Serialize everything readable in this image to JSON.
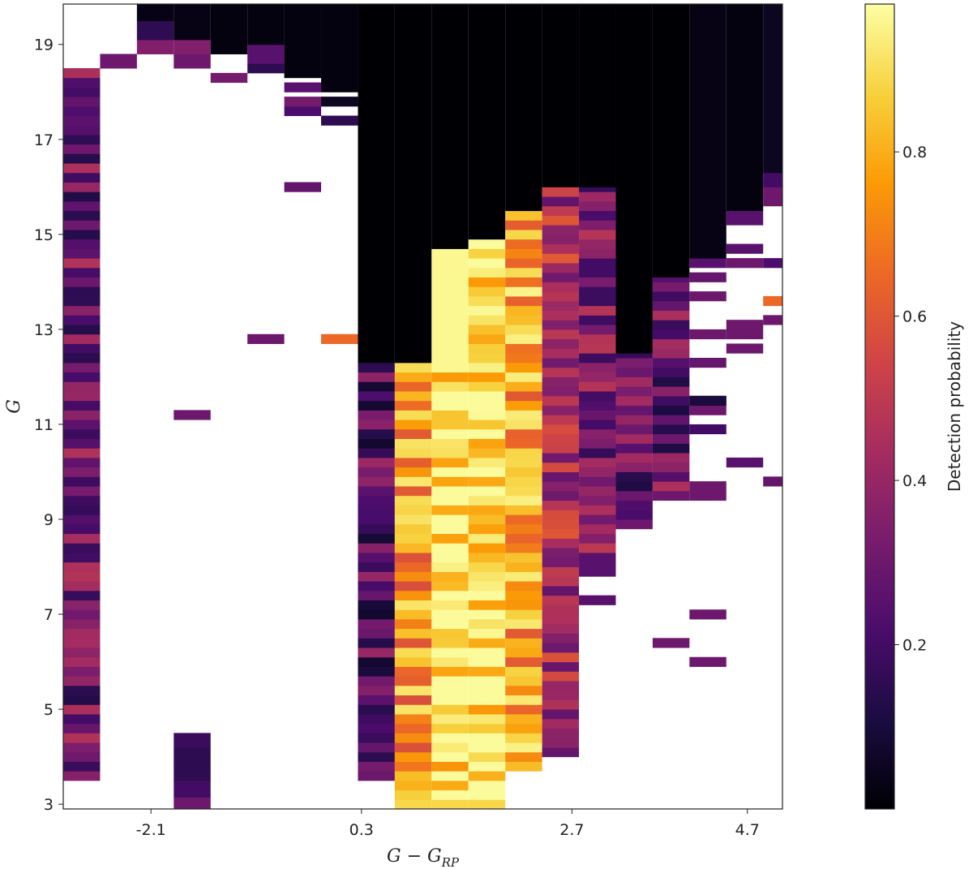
{
  "chart_data": {
    "type": "heatmap",
    "xlabel": "G − G",
    "xlabel_sub": "RP",
    "ylabel": "G",
    "colorbar_label": "Detection probability",
    "colormap": "inferno",
    "xlim": [
      -3.1,
      5.1
    ],
    "ylim": [
      2.9,
      19.85
    ],
    "x_ticks": [
      -2.1,
      0.3,
      2.7,
      4.7
    ],
    "x_tick_labels": [
      "-2.1",
      "0.3",
      "2.7",
      "4.7"
    ],
    "y_ticks": [
      3,
      5,
      7,
      9,
      11,
      13,
      15,
      17,
      19
    ],
    "y_tick_labels": [
      "3",
      "5",
      "7",
      "9",
      "11",
      "13",
      "15",
      "17",
      "19"
    ],
    "colorbar_range": [
      0.0,
      0.98
    ],
    "colorbar_ticks": [
      0.2,
      0.4,
      0.6,
      0.8
    ],
    "colorbar_tick_labels": [
      "0.2",
      "0.4",
      "0.6",
      "0.8"
    ],
    "x_bin_edges": [
      -3.1,
      -2.68,
      -2.26,
      -1.84,
      -1.42,
      -1.0,
      -0.58,
      -0.16,
      0.26,
      0.68,
      1.1,
      1.52,
      1.94,
      2.36,
      2.78,
      3.2,
      3.62,
      4.04,
      4.46,
      4.88,
      5.1
    ],
    "columns": [
      {
        "runs": [
          [
            3.5,
            18.5,
            null
          ]
        ]
      },
      {
        "runs": [
          [
            18.5,
            18.8,
            0.3
          ]
        ]
      },
      {
        "runs": [
          [
            18.8,
            19.1,
            0.35
          ],
          [
            19.1,
            19.5,
            0.15
          ],
          [
            19.5,
            19.85,
            0.03
          ]
        ]
      },
      {
        "runs": [
          [
            2.9,
            3.15,
            0.3
          ],
          [
            3.15,
            3.5,
            0.2
          ],
          [
            3.5,
            3.85,
            0.15
          ],
          [
            3.85,
            4.2,
            0.15
          ],
          [
            4.2,
            4.5,
            0.18
          ],
          [
            11.1,
            11.3,
            0.3
          ],
          [
            18.5,
            18.8,
            0.3
          ],
          [
            18.8,
            19.1,
            0.35
          ],
          [
            19.1,
            19.85,
            0.03
          ]
        ]
      },
      {
        "runs": [
          [
            18.2,
            18.4,
            0.32
          ],
          [
            18.8,
            19.85,
            0.02
          ]
        ]
      },
      {
        "runs": [
          [
            12.7,
            12.9,
            0.3
          ],
          [
            18.4,
            18.6,
            0.15
          ],
          [
            18.6,
            19.0,
            0.25
          ],
          [
            19.0,
            19.85,
            0.02
          ]
        ]
      },
      {
        "runs": [
          [
            15.9,
            16.1,
            0.28
          ],
          [
            17.5,
            17.7,
            0.22
          ],
          [
            17.7,
            17.9,
            0.32
          ],
          [
            18.0,
            18.2,
            0.25
          ],
          [
            18.3,
            19.85,
            0.02
          ]
        ]
      },
      {
        "runs": [
          [
            12.7,
            12.9,
            0.65
          ],
          [
            17.3,
            17.5,
            0.15
          ],
          [
            17.7,
            17.9,
            0.05
          ],
          [
            18.0,
            19.85,
            0.02
          ]
        ]
      },
      {
        "runs": [
          [
            3.5,
            12.3,
            null
          ],
          [
            12.3,
            19.85,
            0.0
          ]
        ]
      },
      {
        "runs": [
          [
            2.9,
            12.3,
            null
          ],
          [
            12.3,
            19.85,
            0.0
          ]
        ]
      },
      {
        "runs": [
          [
            2.9,
            14.7,
            null
          ],
          [
            14.7,
            19.85,
            0.0
          ]
        ]
      },
      {
        "runs": [
          [
            2.9,
            14.9,
            null
          ],
          [
            14.9,
            19.85,
            0.0
          ]
        ]
      },
      {
        "runs": [
          [
            3.7,
            15.5,
            null
          ],
          [
            15.5,
            19.85,
            0.0
          ]
        ]
      },
      {
        "runs": [
          [
            4.0,
            6.0,
            null
          ],
          [
            6.0,
            16.0,
            null
          ],
          [
            16.0,
            19.85,
            0.0
          ]
        ]
      },
      {
        "runs": [
          [
            7.2,
            7.4,
            0.25
          ],
          [
            7.8,
            8.3,
            0.25
          ],
          [
            8.3,
            16.0,
            null
          ],
          [
            16.0,
            19.85,
            0.0
          ]
        ]
      },
      {
        "runs": [
          [
            8.8,
            9.0,
            0.3
          ],
          [
            9.0,
            12.5,
            null
          ],
          [
            12.5,
            19.85,
            0.0
          ]
        ]
      },
      {
        "runs": [
          [
            6.3,
            6.5,
            0.3
          ],
          [
            9.4,
            9.6,
            0.3
          ],
          [
            9.6,
            14.1,
            null
          ],
          [
            14.1,
            19.85,
            0.0
          ]
        ]
      },
      {
        "runs": [
          [
            5.9,
            6.1,
            0.3
          ],
          [
            6.9,
            7.1,
            0.3
          ],
          [
            9.4,
            9.8,
            0.3
          ],
          [
            10.8,
            11.0,
            0.2
          ],
          [
            11.2,
            11.6,
            0.3
          ],
          [
            11.4,
            11.6,
            0.1
          ],
          [
            12.2,
            12.4,
            0.28
          ],
          [
            12.8,
            13.0,
            0.3
          ],
          [
            13.6,
            13.8,
            0.3
          ],
          [
            14.0,
            14.2,
            0.28
          ],
          [
            14.3,
            14.5,
            0.25
          ],
          [
            14.5,
            19.85,
            0.03
          ]
        ]
      },
      {
        "runs": [
          [
            10.1,
            10.3,
            0.25
          ],
          [
            12.5,
            12.7,
            0.3
          ],
          [
            12.8,
            13.2,
            0.3
          ],
          [
            14.3,
            14.5,
            0.3
          ],
          [
            14.6,
            14.8,
            0.25
          ],
          [
            15.2,
            15.5,
            0.25
          ],
          [
            15.5,
            19.85,
            0.02
          ]
        ]
      },
      {
        "runs": [
          [
            9.7,
            9.9,
            0.28
          ],
          [
            13.1,
            13.3,
            0.3
          ],
          [
            13.5,
            13.7,
            0.65
          ],
          [
            14.3,
            14.5,
            0.22
          ],
          [
            15.6,
            16.0,
            0.3
          ],
          [
            16.0,
            16.3,
            0.2
          ],
          [
            16.3,
            19.85,
            0.05
          ]
        ]
      }
    ]
  }
}
